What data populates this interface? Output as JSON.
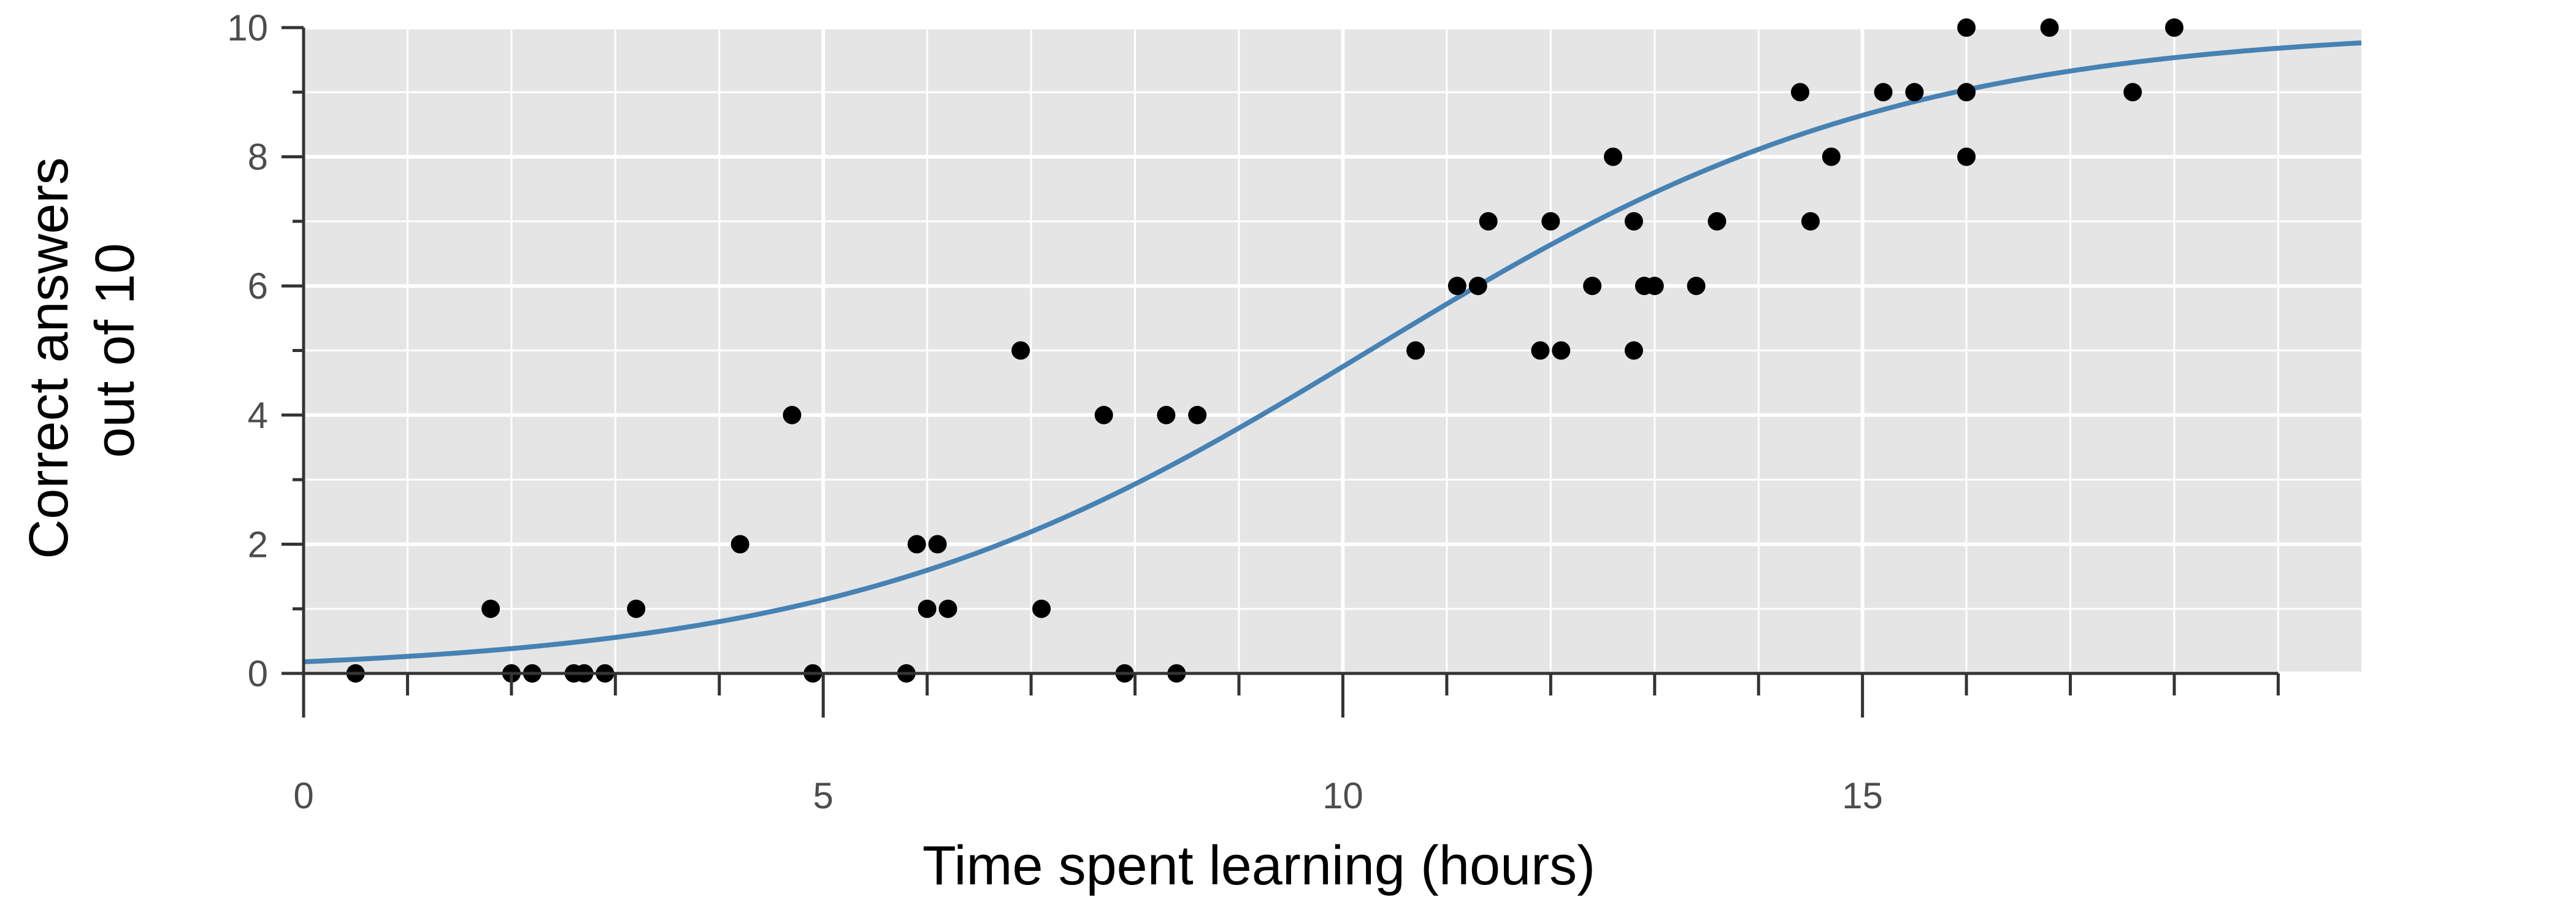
{
  "chart_data": {
    "type": "scatter",
    "title": "",
    "xlabel": "Time spent learning (hours)",
    "ylabel": [
      "Correct answers",
      "out of 10"
    ],
    "xlim": [
      0,
      19.8
    ],
    "ylim": [
      0,
      10
    ],
    "x_ticks": [
      0,
      5,
      10,
      15
    ],
    "x_minor_ticks": [
      0,
      1,
      2,
      3,
      4,
      5,
      6,
      7,
      8,
      9,
      10,
      11,
      12,
      13,
      14,
      15,
      16,
      17,
      18,
      19
    ],
    "y_ticks": [
      0,
      2,
      4,
      6,
      8,
      10
    ],
    "y_minor_ticks": [
      0,
      1,
      2,
      3,
      4,
      5,
      6,
      7,
      8,
      9,
      10
    ],
    "grid": true,
    "colors": {
      "panel": "#e5e5e5",
      "grid": "#ffffff",
      "points": "#000000",
      "curve": "#4682b4",
      "axis": "#333333",
      "tick_text": "#4d4d4d",
      "label_text": "#000000"
    },
    "points": {
      "x": [
        0.5,
        1.8,
        2.0,
        2.2,
        2.6,
        2.7,
        2.9,
        3.2,
        4.2,
        4.7,
        4.9,
        5.8,
        5.9,
        6.0,
        6.1,
        6.2,
        6.9,
        7.1,
        7.7,
        7.9,
        8.3,
        8.4,
        8.6,
        10.7,
        11.1,
        11.3,
        11.4,
        11.9,
        12.0,
        12.1,
        12.4,
        12.6,
        12.8,
        12.8,
        12.9,
        13.0,
        13.4,
        13.6,
        14.4,
        14.5,
        14.7,
        15.2,
        15.5,
        16.0,
        16.0,
        16.0,
        16.8,
        17.6,
        18.0
      ],
      "y": [
        0,
        1,
        0,
        0,
        0,
        0,
        0,
        1,
        2,
        4,
        0,
        0,
        2,
        1,
        2,
        1,
        5,
        1,
        4,
        0,
        4,
        0,
        4,
        5,
        6,
        6,
        7,
        5,
        7,
        5,
        6,
        8,
        7,
        5,
        6,
        6,
        6,
        7,
        9,
        7,
        8,
        9,
        9,
        10,
        9,
        8,
        10,
        9,
        10
      ]
    },
    "fitted_curve": {
      "model": "logistic",
      "n": 10,
      "intercept": -4.0,
      "slope": 0.39,
      "x_range": [
        0,
        19.8
      ]
    }
  }
}
